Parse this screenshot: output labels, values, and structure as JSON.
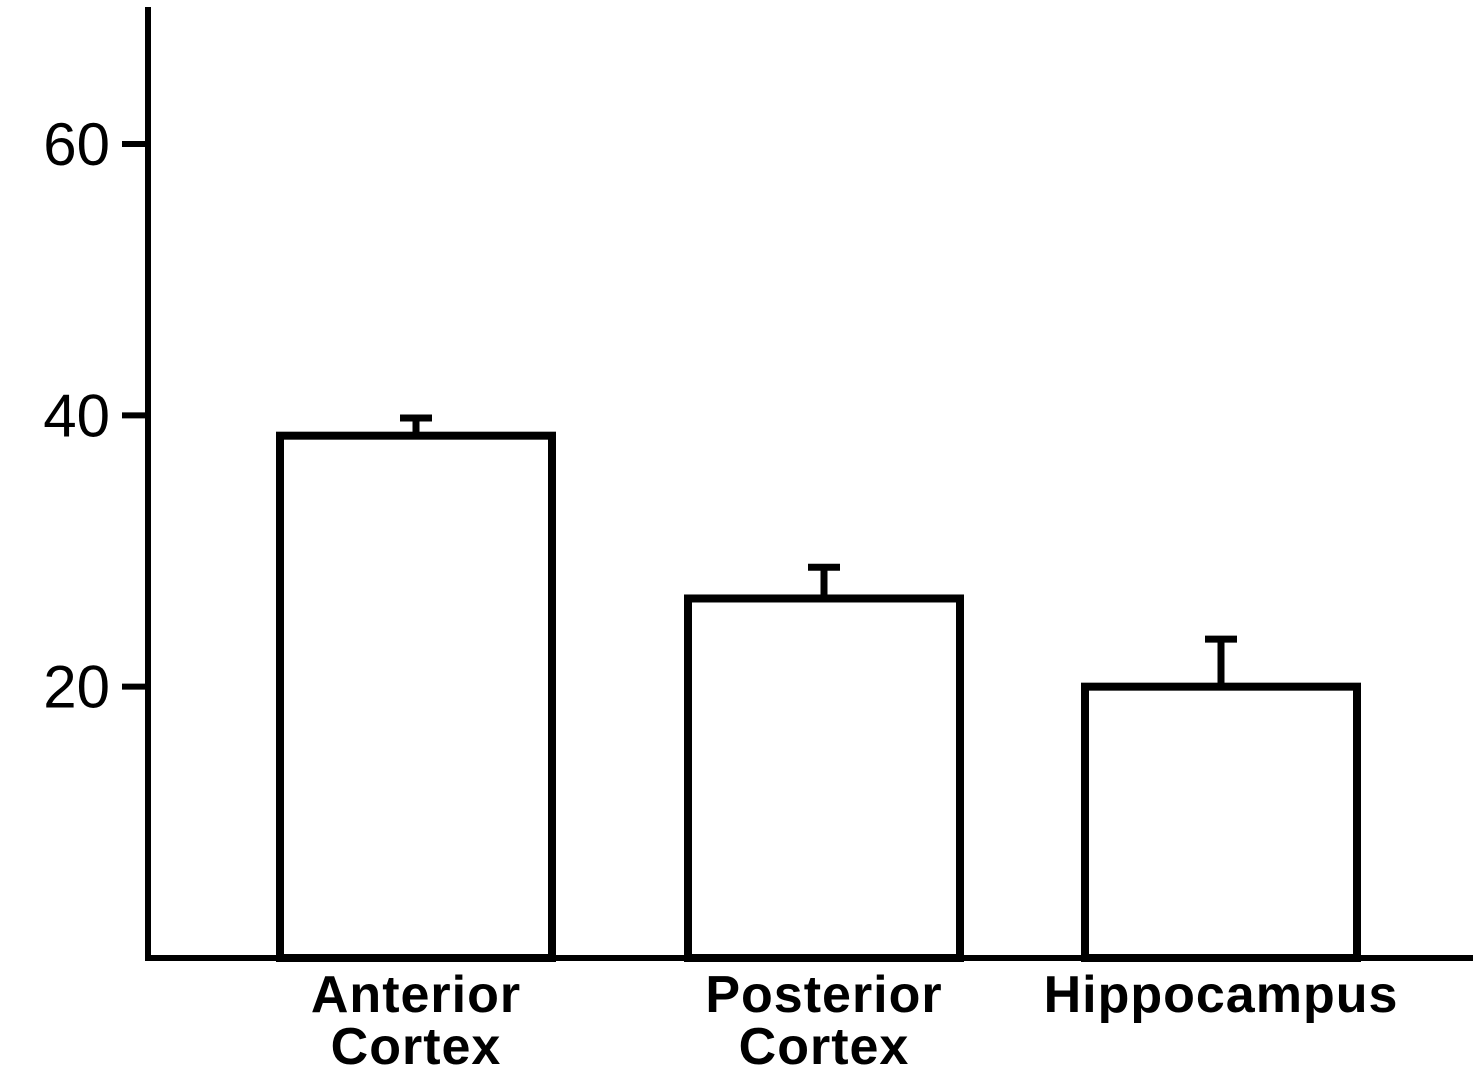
{
  "chart_data": {
    "type": "bar",
    "title": "",
    "xlabel": "",
    "ylabel": "",
    "categories": [
      [
        "Anterior",
        "Cortex"
      ],
      [
        "Posterior",
        "Cortex"
      ],
      [
        "Hippocampus"
      ]
    ],
    "values": [
      38.5,
      26.5,
      20.0
    ],
    "errors": [
      1.3,
      2.3,
      3.5
    ],
    "ylim": [
      0,
      70
    ],
    "yticks": [
      20,
      40,
      60
    ],
    "ytick_labels": [
      "20",
      "40",
      "60"
    ],
    "grid": false,
    "legend": "none",
    "colors": {
      "bar_fill": "#ffffff",
      "stroke": "#000000"
    }
  }
}
